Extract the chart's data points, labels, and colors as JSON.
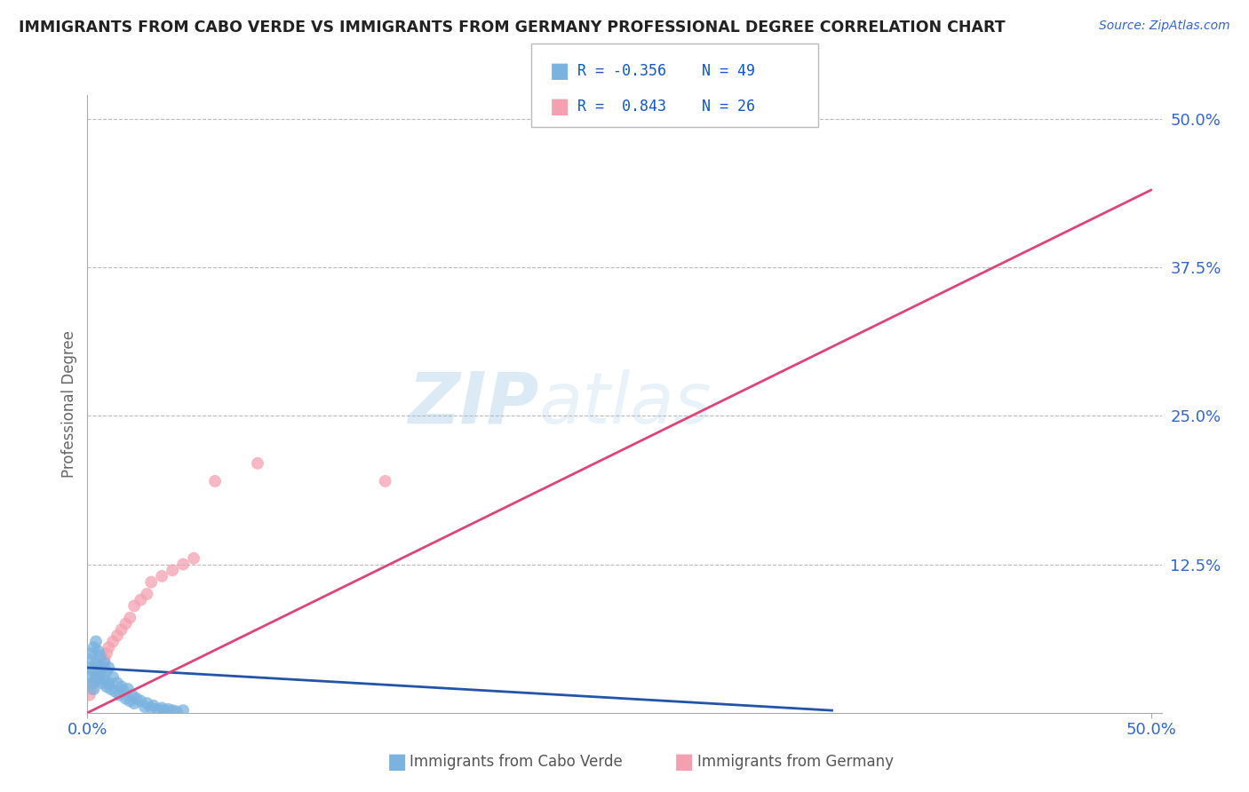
{
  "title": "IMMIGRANTS FROM CABO VERDE VS IMMIGRANTS FROM GERMANY PROFESSIONAL DEGREE CORRELATION CHART",
  "source_text": "Source: ZipAtlas.com",
  "ylabel": "Professional Degree",
  "cabo_verde_color": "#7ab3e0",
  "germany_color": "#f4a0b0",
  "cabo_verde_trend_color": "#2255aa",
  "germany_trend_color": "#dd4477",
  "cabo_verde_R": -0.356,
  "cabo_verde_N": 49,
  "germany_R": 0.843,
  "germany_N": 26,
  "cabo_verde_label": "Immigrants from Cabo Verde",
  "germany_label": "Immigrants from Germany",
  "watermark_line1": "ZIP",
  "watermark_line2": "atlas",
  "background_color": "#ffffff",
  "grid_color": "#bbbbbb",
  "title_color": "#222222",
  "axis_tick_color": "#3366cc",
  "legend_text_color": "#222222",
  "legend_r_color": "#1155cc",
  "cabo_verde_scatter_x": [
    0.001,
    0.001,
    0.002,
    0.002,
    0.002,
    0.003,
    0.003,
    0.003,
    0.004,
    0.004,
    0.004,
    0.005,
    0.005,
    0.005,
    0.006,
    0.006,
    0.007,
    0.007,
    0.008,
    0.008,
    0.009,
    0.009,
    0.01,
    0.01,
    0.011,
    0.012,
    0.013,
    0.014,
    0.015,
    0.016,
    0.017,
    0.018,
    0.019,
    0.02,
    0.021,
    0.022,
    0.023,
    0.025,
    0.027,
    0.028,
    0.03,
    0.031,
    0.033,
    0.035,
    0.036,
    0.038,
    0.04,
    0.042,
    0.045
  ],
  "cabo_verde_scatter_y": [
    0.03,
    0.045,
    0.025,
    0.038,
    0.05,
    0.02,
    0.035,
    0.055,
    0.03,
    0.042,
    0.06,
    0.028,
    0.04,
    0.052,
    0.033,
    0.048,
    0.025,
    0.038,
    0.028,
    0.042,
    0.022,
    0.035,
    0.025,
    0.038,
    0.02,
    0.03,
    0.018,
    0.025,
    0.015,
    0.022,
    0.018,
    0.012,
    0.02,
    0.01,
    0.015,
    0.008,
    0.012,
    0.01,
    0.005,
    0.008,
    0.004,
    0.006,
    0.003,
    0.004,
    0.002,
    0.003,
    0.002,
    0.001,
    0.002
  ],
  "germany_scatter_x": [
    0.001,
    0.002,
    0.003,
    0.004,
    0.005,
    0.006,
    0.007,
    0.008,
    0.009,
    0.01,
    0.012,
    0.014,
    0.016,
    0.018,
    0.02,
    0.022,
    0.025,
    0.028,
    0.03,
    0.035,
    0.04,
    0.045,
    0.05,
    0.06,
    0.08,
    0.14
  ],
  "germany_scatter_y": [
    0.015,
    0.02,
    0.025,
    0.028,
    0.03,
    0.035,
    0.04,
    0.045,
    0.05,
    0.055,
    0.06,
    0.065,
    0.07,
    0.075,
    0.08,
    0.09,
    0.095,
    0.1,
    0.11,
    0.115,
    0.12,
    0.125,
    0.13,
    0.195,
    0.21,
    0.195
  ],
  "cabo_verde_trend_x": [
    0.0,
    0.35
  ],
  "cabo_verde_trend_y": [
    0.038,
    0.002
  ],
  "germany_trend_x": [
    0.0,
    0.5
  ],
  "germany_trend_y": [
    0.0,
    0.44
  ],
  "xlim": [
    0.0,
    0.505
  ],
  "ylim": [
    0.0,
    0.52
  ],
  "x_ticks": [
    0.0,
    0.5
  ],
  "x_tick_labels": [
    "0.0%",
    "50.0%"
  ],
  "y_ticks_right": [
    0.125,
    0.25,
    0.375,
    0.5
  ],
  "y_tick_labels_right": [
    "12.5%",
    "25.0%",
    "37.5%",
    "50.0%"
  ],
  "scatter_size": 100
}
